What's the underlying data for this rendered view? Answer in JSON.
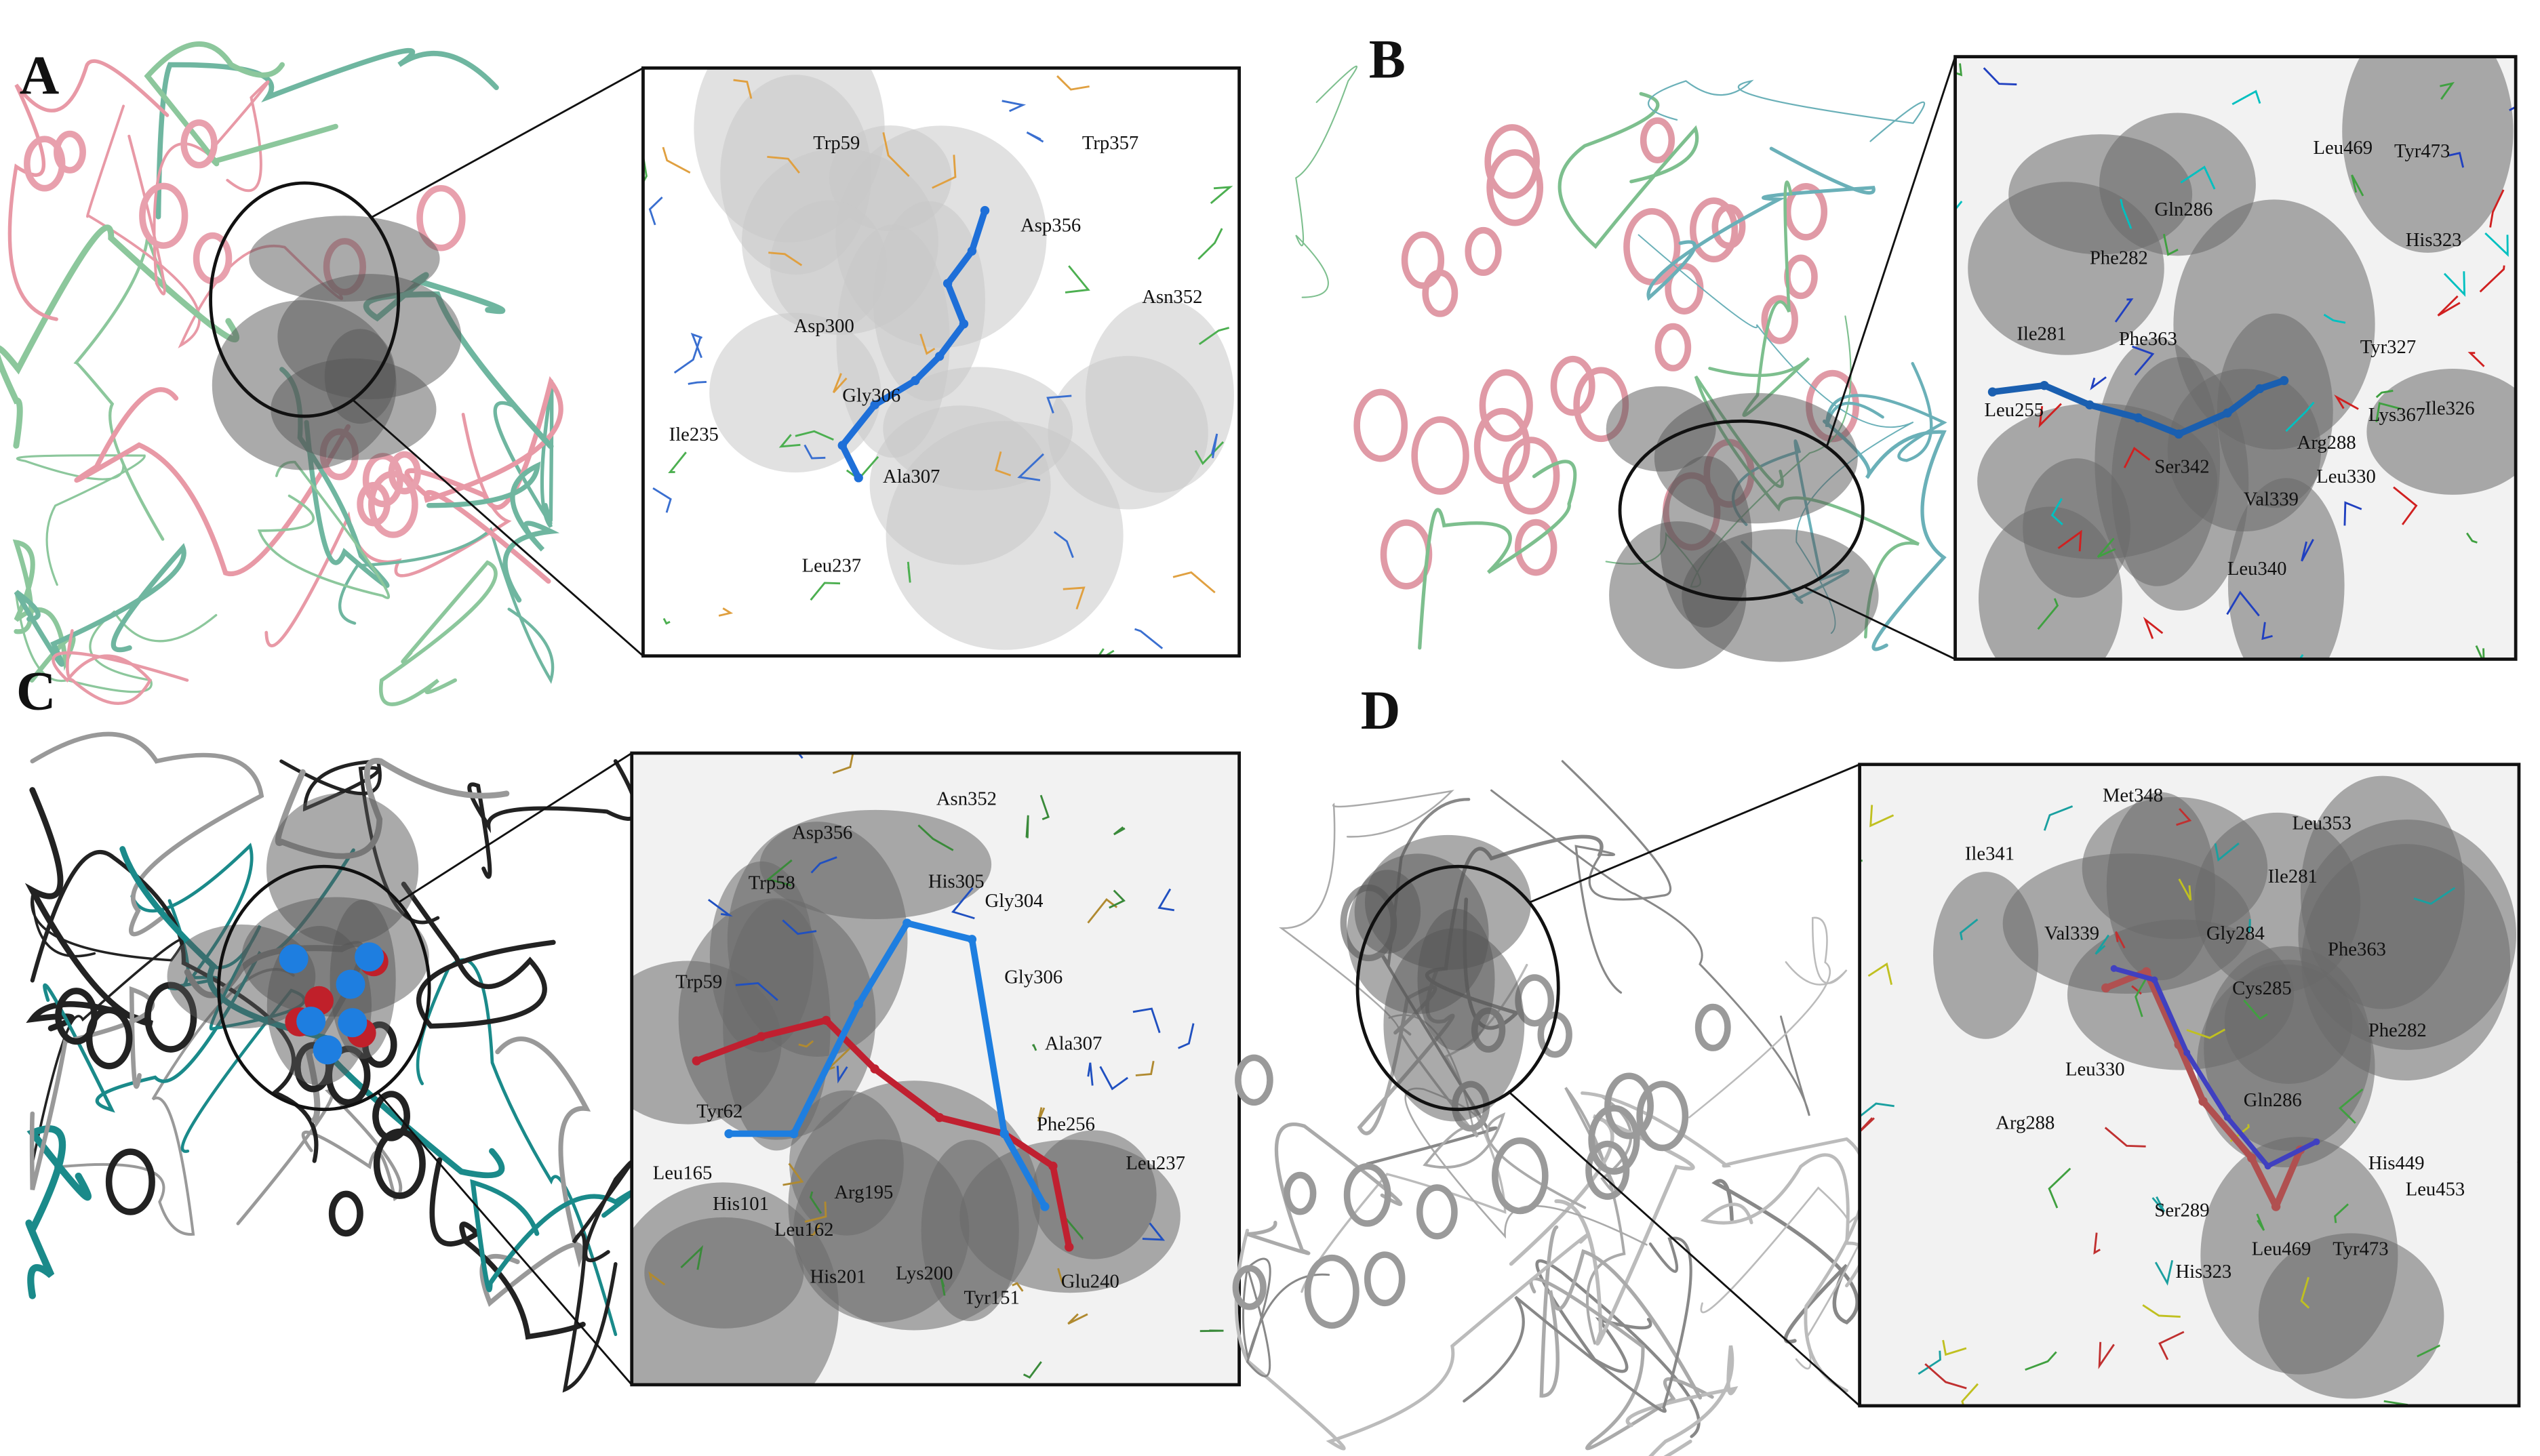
{
  "panels": [
    {
      "label": "A",
      "residues": [
        "Trp59",
        "Trp357",
        "Asp356",
        "Asn352",
        "Asp300",
        "Gly306",
        "Ile235",
        "Ala307",
        "Leu237"
      ]
    },
    {
      "label": "B",
      "residues": [
        "Leu469",
        "Tyr473",
        "Gln286",
        "Phe282",
        "His323",
        "Ile281",
        "Phe363",
        "Tyr327",
        "Leu255",
        "Arg288",
        "Lys367",
        "Ile326",
        "Ser342",
        "Leu330",
        "Val339",
        "Leu340"
      ]
    },
    {
      "label": "C",
      "residues": [
        "Asn352",
        "Asp356",
        "Gly304",
        "His305",
        "Trp58",
        "Gly306",
        "Trp59",
        "Ala307",
        "Phe256",
        "Tyr62",
        "Leu237",
        "Leu165",
        "His101",
        "Arg195",
        "Leu162",
        "His201",
        "Lys200",
        "Tyr151",
        "Glu240"
      ]
    },
    {
      "label": "D",
      "residues": [
        "Met348",
        "Leu353",
        "Ile341",
        "Ile281",
        "Val339",
        "Gly284",
        "Phe363",
        "Cys285",
        "Phe282",
        "Leu330",
        "Gln286",
        "Arg288",
        "His449",
        "Leu453",
        "Ser289",
        "Leu469",
        "Tyr473",
        "His323"
      ]
    }
  ]
}
